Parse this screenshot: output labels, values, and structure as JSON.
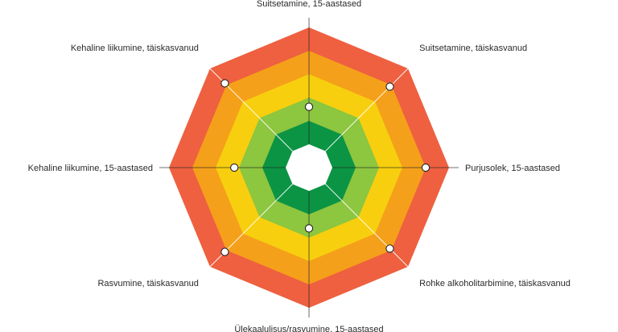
{
  "chart_data": {
    "type": "radar",
    "title": "",
    "axes": [
      "Suitsetamine, 15-aastased",
      "Suitsetamine, täiskasvanud",
      "Purjusolek, 15-aastased",
      "Rohke alkoholitarbimine, täiskasvanud",
      "Ülekaalulisus/rasvumine, 15-aastased",
      "Rasvumine, täiskasvanud",
      "Kehaline liikumine, 15-aastased",
      "Kehaline liikumine, täiskasvanud"
    ],
    "range": [
      0,
      6
    ],
    "band_colors": [
      "#ffffff",
      "#0b9444",
      "#8dc63f",
      "#f7cf0f",
      "#f5a01a",
      "#ee6040"
    ],
    "series": [
      {
        "values": [
          2.6,
          4.9,
          5.0,
          4.9,
          2.6,
          5.1,
          3.2,
          5.1
        ]
      }
    ],
    "grid": true,
    "legend": "none"
  }
}
